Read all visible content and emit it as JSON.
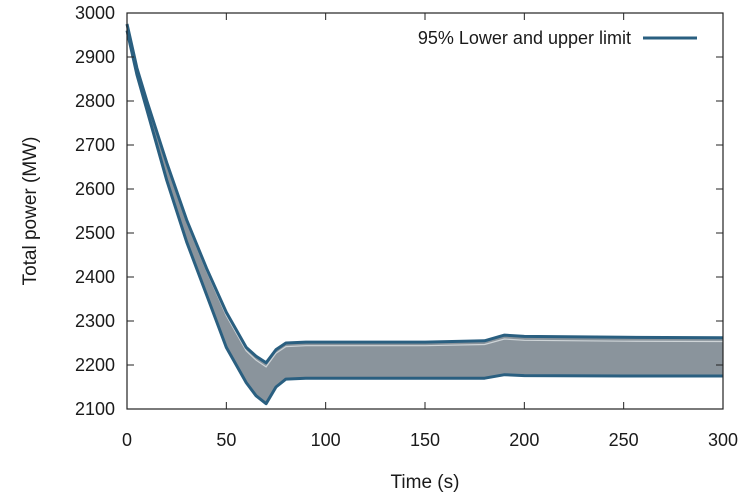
{
  "chart_data": {
    "type": "area",
    "xlabel": "Time (s)",
    "ylabel": "Total power (MW)",
    "xlim": [
      0,
      300
    ],
    "ylim": [
      2100,
      3000
    ],
    "x_ticks": [
      "0",
      "50",
      "100",
      "150",
      "200",
      "250",
      "300"
    ],
    "y_ticks": [
      "2100",
      "2200",
      "2300",
      "2400",
      "2500",
      "2600",
      "2700",
      "2800",
      "2900",
      "3000"
    ],
    "grid": false,
    "legend": {
      "position": "top-right",
      "entries": [
        "95% Lower and upper limit"
      ]
    },
    "series": [
      {
        "name": "95% Lower and upper limit",
        "role": "upper",
        "x": [
          0,
          5,
          10,
          20,
          30,
          40,
          50,
          60,
          65,
          70,
          75,
          80,
          90,
          100,
          120,
          150,
          180,
          190,
          200,
          250,
          300
        ],
        "values": [
          2975,
          2875,
          2800,
          2660,
          2530,
          2420,
          2320,
          2240,
          2220,
          2205,
          2235,
          2250,
          2252,
          2252,
          2252,
          2252,
          2255,
          2268,
          2265,
          2263,
          2262
        ]
      },
      {
        "name": "95% Lower and upper limit",
        "role": "lower",
        "x": [
          0,
          5,
          10,
          20,
          30,
          40,
          50,
          60,
          65,
          70,
          75,
          80,
          90,
          100,
          120,
          150,
          180,
          190,
          200,
          250,
          300
        ],
        "values": [
          2960,
          2860,
          2780,
          2620,
          2480,
          2360,
          2240,
          2160,
          2130,
          2112,
          2150,
          2168,
          2170,
          2170,
          2170,
          2170,
          2170,
          2178,
          2176,
          2175,
          2175
        ]
      }
    ],
    "colors": {
      "band_fill": "#8a949c",
      "limit_line": "#2a5f80",
      "inner_light": "#dfe3e6"
    }
  }
}
